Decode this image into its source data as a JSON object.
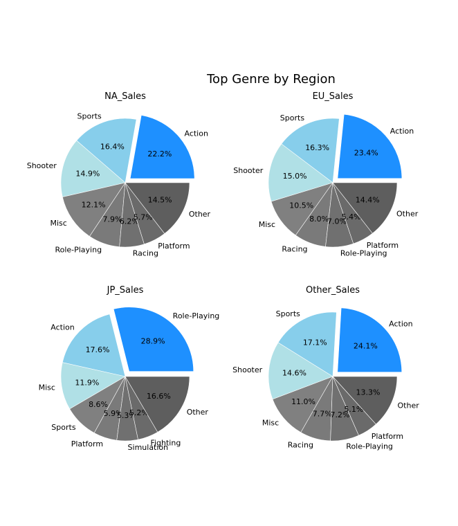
{
  "chart_data": [
    {
      "type": "pie",
      "title": "NA_Sales",
      "labels": [
        "Action",
        "Sports",
        "Shooter",
        "Misc",
        "Role-Playing",
        "Racing",
        "Platform",
        "Other"
      ],
      "values": [
        22.2,
        16.4,
        14.9,
        12.1,
        7.9,
        6.2,
        5.7,
        14.5
      ],
      "value_labels": [
        "22.2%",
        "16.4%",
        "14.9%",
        "12.1%",
        "7.9%",
        "6.2%",
        "5.7%",
        "14.5%"
      ],
      "colors": [
        "#1e90ff",
        "#87ceeb",
        "#b0e0e6",
        "#808080",
        "#7a7a7a",
        "#707070",
        "#6a6a6a",
        "#5e5e5e"
      ],
      "exploded": "Action",
      "start_angle": 0
    },
    {
      "type": "pie",
      "title": "EU_Sales",
      "labels": [
        "Action",
        "Sports",
        "Shooter",
        "Misc",
        "Racing",
        "Role-Playing",
        "Platform",
        "Other"
      ],
      "values": [
        23.4,
        16.3,
        15.0,
        10.5,
        8.0,
        7.0,
        5.4,
        14.4
      ],
      "value_labels": [
        "23.4%",
        "16.3%",
        "15.0%",
        "10.5%",
        "8.0%",
        "7.0%",
        "5.4%",
        "14.4%"
      ],
      "colors": [
        "#1e90ff",
        "#87ceeb",
        "#b0e0e6",
        "#808080",
        "#7a7a7a",
        "#707070",
        "#6a6a6a",
        "#5e5e5e"
      ],
      "exploded": "Action",
      "start_angle": 0
    },
    {
      "type": "pie",
      "title": "JP_Sales",
      "labels": [
        "Role-Playing",
        "Action",
        "Misc",
        "Sports",
        "Platform",
        "Simulation",
        "Fighting",
        "Other"
      ],
      "values": [
        28.9,
        17.6,
        11.9,
        8.6,
        5.9,
        5.3,
        5.2,
        16.6
      ],
      "value_labels": [
        "28.9%",
        "17.6%",
        "11.9%",
        "8.6%",
        "5.9%",
        "5.3%",
        "5.2%",
        "16.6%"
      ],
      "colors": [
        "#1e90ff",
        "#87ceeb",
        "#b0e0e6",
        "#808080",
        "#7a7a7a",
        "#707070",
        "#6a6a6a",
        "#5e5e5e"
      ],
      "exploded": "Role-Playing",
      "start_angle": 0
    },
    {
      "type": "pie",
      "title": "Other_Sales",
      "labels": [
        "Action",
        "Sports",
        "Shooter",
        "Misc",
        "Racing",
        "Role-Playing",
        "Platform",
        "Other"
      ],
      "values": [
        24.1,
        17.1,
        14.6,
        11.0,
        7.7,
        7.2,
        5.1,
        13.3
      ],
      "value_labels": [
        "24.1%",
        "17.1%",
        "14.6%",
        "11.0%",
        "7.7%",
        "7.2%",
        "5.1%",
        "13.3%"
      ],
      "colors": [
        "#1e90ff",
        "#87ceeb",
        "#b0e0e6",
        "#808080",
        "#7a7a7a",
        "#707070",
        "#6a6a6a",
        "#5e5e5e"
      ],
      "exploded": "Action",
      "start_angle": 0
    }
  ],
  "figure": {
    "suptitle": "Top Genre by Region"
  }
}
